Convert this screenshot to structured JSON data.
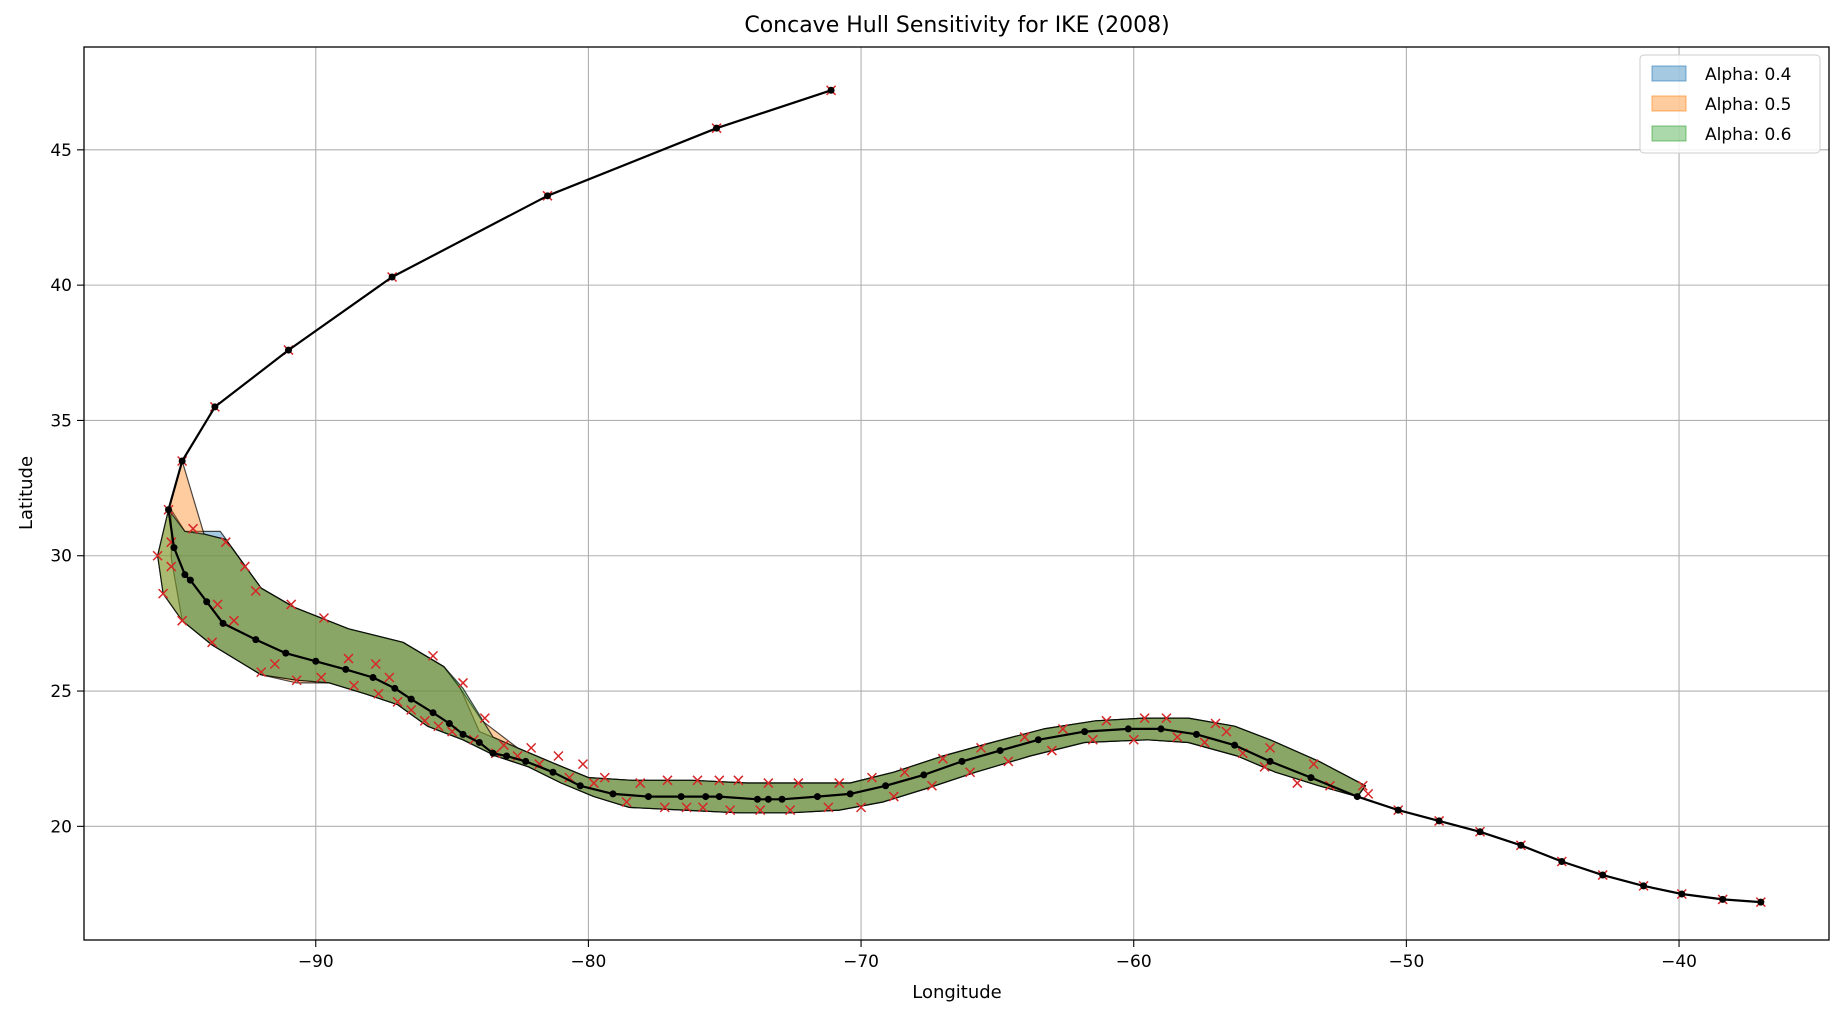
{
  "chart_data": {
    "type": "line",
    "title": "Concave Hull Sensitivity for IKE (2008)",
    "xlabel": "Longitude",
    "ylabel": "Latitude",
    "xlim": [
      -98.5,
      -34.5
    ],
    "ylim": [
      15.8,
      48.8
    ],
    "xticks": [
      -90,
      -80,
      -70,
      -60,
      -50,
      -40
    ],
    "yticks": [
      20,
      25,
      30,
      35,
      40,
      45
    ],
    "xtick_labels": [
      "−90",
      "−80",
      "−70",
      "−60",
      "−50",
      "−40"
    ],
    "ytick_labels": [
      "20",
      "25",
      "30",
      "35",
      "40",
      "45"
    ],
    "grid": true,
    "legend_position": "top-right",
    "colors": {
      "alpha04": "#1f77b4",
      "alpha05": "#ff7f0e",
      "alpha06": "#2ca02c",
      "track": "#000000",
      "markers": "#d62728"
    },
    "hulls": [
      {
        "name": "Alpha: 0.4",
        "polygon": [
          [
            -95.3,
            31.7
          ],
          [
            -95.3,
            29.9
          ],
          [
            -94.9,
            27.6
          ],
          [
            -93.8,
            26.7
          ],
          [
            -92.0,
            25.6
          ],
          [
            -90.7,
            25.4
          ],
          [
            -89.5,
            25.3
          ],
          [
            -88.2,
            24.9
          ],
          [
            -87.0,
            24.5
          ],
          [
            -85.9,
            23.7
          ],
          [
            -84.6,
            23.2
          ],
          [
            -83.4,
            22.6
          ],
          [
            -82.2,
            22.2
          ],
          [
            -81.0,
            21.6
          ],
          [
            -79.8,
            21.1
          ],
          [
            -78.5,
            20.7
          ],
          [
            -76.5,
            20.6
          ],
          [
            -74.5,
            20.5
          ],
          [
            -72.6,
            20.5
          ],
          [
            -70.8,
            20.6
          ],
          [
            -69.2,
            20.9
          ],
          [
            -67.6,
            21.4
          ],
          [
            -65.8,
            22.0
          ],
          [
            -63.8,
            22.6
          ],
          [
            -61.8,
            23.1
          ],
          [
            -59.5,
            23.2
          ],
          [
            -58.0,
            23.1
          ],
          [
            -56.2,
            22.6
          ],
          [
            -54.8,
            22.0
          ],
          [
            -53.2,
            21.5
          ],
          [
            -51.8,
            21.1
          ],
          [
            -51.5,
            21.5
          ],
          [
            -53.2,
            22.4
          ],
          [
            -55.0,
            23.2
          ],
          [
            -56.3,
            23.7
          ],
          [
            -58.0,
            24.0
          ],
          [
            -59.6,
            24.0
          ],
          [
            -61.4,
            23.9
          ],
          [
            -63.3,
            23.6
          ],
          [
            -65.2,
            23.1
          ],
          [
            -67.0,
            22.6
          ],
          [
            -68.8,
            22.0
          ],
          [
            -70.4,
            21.6
          ],
          [
            -72.2,
            21.6
          ],
          [
            -74.2,
            21.6
          ],
          [
            -76.2,
            21.7
          ],
          [
            -78.4,
            21.7
          ],
          [
            -80.0,
            21.8
          ],
          [
            -81.2,
            22.3
          ],
          [
            -82.6,
            22.9
          ],
          [
            -84.0,
            23.5
          ],
          [
            -84.7,
            25.1
          ],
          [
            -85.3,
            25.9
          ],
          [
            -86.8,
            26.8
          ],
          [
            -88.8,
            27.3
          ],
          [
            -90.8,
            28.1
          ],
          [
            -92.0,
            28.8
          ],
          [
            -93.5,
            30.9
          ],
          [
            -94.8,
            30.9
          ],
          [
            -95.3,
            31.7
          ]
        ]
      },
      {
        "name": "Alpha: 0.5",
        "polygon": [
          [
            -94.9,
            33.5
          ],
          [
            -95.4,
            31.7
          ],
          [
            -95.8,
            30.0
          ],
          [
            -95.6,
            28.6
          ],
          [
            -94.9,
            27.6
          ],
          [
            -93.8,
            26.7
          ],
          [
            -92.0,
            25.6
          ],
          [
            -90.7,
            25.3
          ],
          [
            -89.5,
            25.3
          ],
          [
            -88.2,
            24.9
          ],
          [
            -87.0,
            24.5
          ],
          [
            -85.9,
            23.7
          ],
          [
            -84.6,
            23.2
          ],
          [
            -83.4,
            22.6
          ],
          [
            -82.2,
            22.2
          ],
          [
            -81.0,
            21.6
          ],
          [
            -79.8,
            21.1
          ],
          [
            -78.5,
            20.7
          ],
          [
            -76.5,
            20.6
          ],
          [
            -74.5,
            20.5
          ],
          [
            -72.6,
            20.5
          ],
          [
            -70.8,
            20.6
          ],
          [
            -69.2,
            20.9
          ],
          [
            -67.6,
            21.4
          ],
          [
            -65.8,
            22.0
          ],
          [
            -63.8,
            22.6
          ],
          [
            -61.8,
            23.1
          ],
          [
            -59.5,
            23.2
          ],
          [
            -58.0,
            23.1
          ],
          [
            -56.2,
            22.6
          ],
          [
            -54.8,
            22.0
          ],
          [
            -53.2,
            21.5
          ],
          [
            -51.8,
            21.1
          ],
          [
            -51.5,
            21.5
          ],
          [
            -53.2,
            22.4
          ],
          [
            -55.0,
            23.2
          ],
          [
            -56.3,
            23.7
          ],
          [
            -58.0,
            24.0
          ],
          [
            -59.6,
            24.0
          ],
          [
            -61.4,
            23.9
          ],
          [
            -63.3,
            23.6
          ],
          [
            -65.2,
            23.1
          ],
          [
            -67.0,
            22.6
          ],
          [
            -68.8,
            22.0
          ],
          [
            -70.4,
            21.6
          ],
          [
            -72.2,
            21.6
          ],
          [
            -74.2,
            21.6
          ],
          [
            -76.2,
            21.7
          ],
          [
            -78.4,
            21.7
          ],
          [
            -80.0,
            21.8
          ],
          [
            -81.2,
            22.3
          ],
          [
            -82.6,
            22.9
          ],
          [
            -83.9,
            23.9
          ],
          [
            -84.7,
            25.1
          ],
          [
            -85.3,
            25.9
          ],
          [
            -86.8,
            26.8
          ],
          [
            -88.8,
            27.3
          ],
          [
            -90.8,
            28.1
          ],
          [
            -92.0,
            28.8
          ],
          [
            -93.3,
            30.6
          ],
          [
            -94.1,
            30.8
          ],
          [
            -94.9,
            33.5
          ]
        ]
      },
      {
        "name": "Alpha: 0.6",
        "polygon": [
          [
            -95.4,
            31.7
          ],
          [
            -95.8,
            30.0
          ],
          [
            -95.6,
            28.6
          ],
          [
            -94.9,
            27.6
          ],
          [
            -93.8,
            26.7
          ],
          [
            -92.0,
            25.6
          ],
          [
            -90.7,
            25.4
          ],
          [
            -89.5,
            25.3
          ],
          [
            -88.2,
            24.9
          ],
          [
            -87.0,
            24.5
          ],
          [
            -85.9,
            23.7
          ],
          [
            -84.6,
            23.2
          ],
          [
            -83.4,
            22.6
          ],
          [
            -82.2,
            22.2
          ],
          [
            -81.0,
            21.6
          ],
          [
            -79.8,
            21.1
          ],
          [
            -78.5,
            20.7
          ],
          [
            -76.5,
            20.6
          ],
          [
            -74.5,
            20.5
          ],
          [
            -72.6,
            20.5
          ],
          [
            -70.8,
            20.6
          ],
          [
            -69.2,
            20.9
          ],
          [
            -67.6,
            21.4
          ],
          [
            -65.8,
            22.0
          ],
          [
            -63.8,
            22.6
          ],
          [
            -61.8,
            23.1
          ],
          [
            -59.5,
            23.2
          ],
          [
            -58.0,
            23.1
          ],
          [
            -56.2,
            22.6
          ],
          [
            -54.8,
            22.0
          ],
          [
            -53.2,
            21.5
          ],
          [
            -51.8,
            21.1
          ],
          [
            -51.5,
            21.5
          ],
          [
            -53.2,
            22.4
          ],
          [
            -55.0,
            23.2
          ],
          [
            -56.3,
            23.7
          ],
          [
            -58.0,
            24.0
          ],
          [
            -59.6,
            24.0
          ],
          [
            -61.4,
            23.9
          ],
          [
            -63.3,
            23.6
          ],
          [
            -65.2,
            23.1
          ],
          [
            -67.0,
            22.6
          ],
          [
            -68.8,
            22.0
          ],
          [
            -70.4,
            21.6
          ],
          [
            -72.2,
            21.6
          ],
          [
            -74.2,
            21.6
          ],
          [
            -76.2,
            21.7
          ],
          [
            -78.4,
            21.7
          ],
          [
            -80.0,
            21.8
          ],
          [
            -81.2,
            22.3
          ],
          [
            -82.6,
            22.9
          ],
          [
            -83.5,
            23.3
          ],
          [
            -84.6,
            25.1
          ],
          [
            -85.3,
            25.9
          ],
          [
            -86.8,
            26.8
          ],
          [
            -88.8,
            27.3
          ],
          [
            -90.8,
            28.1
          ],
          [
            -92.0,
            28.8
          ],
          [
            -93.3,
            30.6
          ],
          [
            -94.1,
            30.8
          ],
          [
            -94.8,
            30.9
          ],
          [
            -95.4,
            31.7
          ]
        ]
      }
    ],
    "track": {
      "x": [
        -71.1,
        -75.3,
        -81.5,
        -87.2,
        -91.0,
        -93.7,
        -94.9,
        -95.4,
        -95.2,
        -94.8,
        -94.6,
        -94.0,
        -93.4,
        -92.2,
        -91.1,
        -90.0,
        -88.9,
        -87.9,
        -87.1,
        -86.5,
        -85.7,
        -85.1,
        -84.6,
        -84.0,
        -83.5,
        -83.0,
        -82.3,
        -81.3,
        -80.3,
        -79.1,
        -77.8,
        -76.6,
        -75.7,
        -75.2,
        -73.8,
        -73.4,
        -72.9,
        -71.6,
        -70.4,
        -69.1,
        -67.7,
        -66.3,
        -64.9,
        -63.5,
        -61.8,
        -60.2,
        -59.0,
        -57.7,
        -56.3,
        -55.0,
        -53.5,
        -51.8,
        -50.3,
        -48.8,
        -47.3,
        -45.8,
        -44.3,
        -42.8,
        -41.3,
        -39.9,
        -38.4,
        -37.0
      ],
      "y": [
        47.2,
        45.8,
        43.3,
        40.3,
        37.6,
        35.5,
        33.5,
        31.7,
        30.3,
        29.3,
        29.1,
        28.3,
        27.5,
        26.9,
        26.4,
        26.1,
        25.8,
        25.5,
        25.1,
        24.7,
        24.2,
        23.8,
        23.4,
        23.1,
        22.7,
        22.6,
        22.4,
        22.0,
        21.5,
        21.2,
        21.1,
        21.1,
        21.1,
        21.1,
        21.0,
        21.0,
        21.0,
        21.1,
        21.2,
        21.5,
        21.9,
        22.4,
        22.8,
        23.2,
        23.5,
        23.6,
        23.6,
        23.4,
        23.0,
        22.4,
        21.8,
        21.1,
        20.6,
        20.2,
        19.8,
        19.3,
        18.7,
        18.2,
        17.8,
        17.5,
        17.3,
        17.2
      ]
    },
    "buffer_points": {
      "x": [
        -71.1,
        -75.3,
        -81.5,
        -87.2,
        -91.0,
        -93.7,
        -94.9,
        -95.4,
        -95.3,
        -95.8,
        -95.6,
        -95.3,
        -94.9,
        -94.5,
        -93.8,
        -93.3,
        -93.6,
        -93.0,
        -92.6,
        -92.0,
        -92.2,
        -91.5,
        -90.7,
        -90.9,
        -89.8,
        -89.7,
        -88.6,
        -88.8,
        -87.7,
        -87.8,
        -87.0,
        -87.3,
        -86.5,
        -86.0,
        -85.5,
        -85.7,
        -85.0,
        -84.6,
        -84.2,
        -83.8,
        -83.4,
        -83.1,
        -82.6,
        -82.1,
        -81.8,
        -81.1,
        -80.7,
        -80.2,
        -79.8,
        -79.4,
        -78.6,
        -78.1,
        -77.2,
        -77.1,
        -76.4,
        -76.0,
        -75.8,
        -75.2,
        -74.8,
        -74.5,
        -73.7,
        -73.4,
        -72.6,
        -72.3,
        -71.2,
        -70.8,
        -70.0,
        -69.6,
        -68.8,
        -68.4,
        -67.4,
        -67.0,
        -66.0,
        -65.6,
        -64.6,
        -64.0,
        -63.0,
        -62.6,
        -61.5,
        -61.0,
        -60.0,
        -59.6,
        -58.4,
        -58.8,
        -57.4,
        -57.0,
        -56.0,
        -56.6,
        -55.2,
        -55.0,
        -54.0,
        -53.4,
        -52.8,
        -51.6,
        -51.4,
        -50.3,
        -48.8,
        -47.3,
        -45.8,
        -44.3,
        -42.8,
        -41.3,
        -39.9,
        -38.4,
        -37.0
      ],
      "y": [
        47.2,
        45.8,
        43.3,
        40.3,
        37.6,
        35.5,
        33.5,
        31.7,
        30.5,
        30.0,
        28.6,
        29.6,
        27.6,
        31.0,
        26.8,
        30.5,
        28.2,
        27.6,
        29.6,
        25.7,
        28.7,
        26.0,
        25.4,
        28.2,
        25.5,
        27.7,
        25.2,
        26.2,
        24.9,
        26.0,
        24.6,
        25.5,
        24.3,
        23.9,
        23.7,
        26.3,
        23.5,
        25.3,
        23.2,
        24.0,
        22.7,
        23.0,
        22.6,
        22.9,
        22.3,
        22.6,
        21.8,
        22.3,
        21.6,
        21.8,
        20.9,
        21.6,
        20.7,
        21.7,
        20.7,
        21.7,
        20.7,
        21.7,
        20.6,
        21.7,
        20.6,
        21.6,
        20.6,
        21.6,
        20.7,
        21.6,
        20.7,
        21.8,
        21.1,
        22.0,
        21.5,
        22.5,
        22.0,
        22.9,
        22.4,
        23.3,
        22.8,
        23.6,
        23.2,
        23.9,
        23.2,
        24.0,
        23.3,
        24.0,
        23.1,
        23.8,
        22.7,
        23.5,
        22.2,
        22.9,
        21.6,
        22.3,
        21.5,
        21.5,
        21.2,
        20.6,
        20.2,
        19.8,
        19.3,
        18.7,
        18.2,
        17.8,
        17.5,
        17.3,
        17.2
      ]
    }
  }
}
